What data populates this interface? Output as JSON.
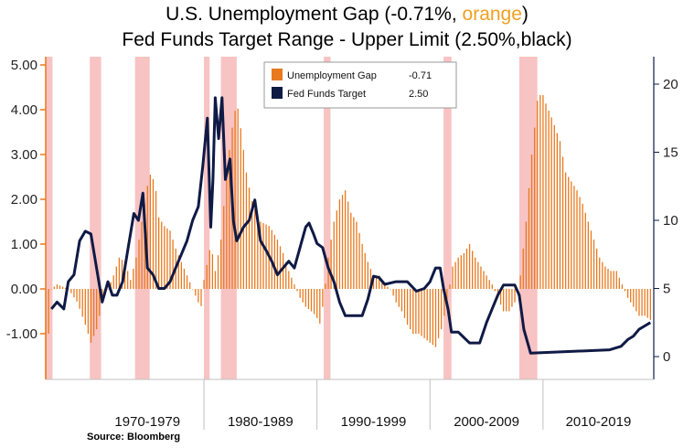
{
  "title": {
    "line1_prefix": "U.S. Unemployment Gap (-0.71%, ",
    "line1_highlight": "orange",
    "line1_suffix": ")",
    "line2": "Fed Funds Target Range - Upper Limit (2.50%,black)"
  },
  "source": "Source: Bloomberg",
  "colors": {
    "gap": "#e8791e",
    "fed": "#0f1a45",
    "recession": "#f7b8b8",
    "grid": "#c8c8c8",
    "divider": "#c0c0c0"
  },
  "chart_data": {
    "type": "bar+line",
    "title": "U.S. Unemployment Gap (-0.71%, orange) / Fed Funds Target Range - Upper Limit (2.50%, black)",
    "x_range": [
      1966,
      2019.8
    ],
    "left_axis": {
      "min": -2.0,
      "max": 5.0,
      "ticks": [
        -1.0,
        0.0,
        1.0,
        2.0,
        3.0,
        4.0,
        5.0
      ],
      "tick_labels": [
        "-1.00",
        "0.00",
        "1.00",
        "2.00",
        "3.00",
        "4.00",
        "5.00"
      ]
    },
    "right_axis": {
      "min": -2.0,
      "max": 21.0,
      "ticks": [
        0,
        5,
        10,
        15,
        20
      ],
      "tick_labels": [
        "0",
        "5",
        "10",
        "15",
        "20"
      ]
    },
    "decades": [
      {
        "label": "1970-1979",
        "start": 1970,
        "end": 1980
      },
      {
        "label": "1980-1989",
        "start": 1980,
        "end": 1990
      },
      {
        "label": "1990-1999",
        "start": 1990,
        "end": 2000
      },
      {
        "label": "2000-2009",
        "start": 2000,
        "end": 2010
      },
      {
        "label": "2010-2019",
        "start": 2010,
        "end": 2020
      }
    ],
    "recessions": [
      [
        1966.0,
        1966.6
      ],
      [
        1969.9,
        1970.9
      ],
      [
        1973.9,
        1975.2
      ],
      [
        1980.0,
        1980.5
      ],
      [
        1981.5,
        1982.9
      ],
      [
        1990.6,
        1991.2
      ],
      [
        2001.2,
        2001.9
      ],
      [
        2007.9,
        2009.5
      ]
    ],
    "legend": [
      {
        "label": "Unemployment Gap",
        "value": "-0.71",
        "series": "gap"
      },
      {
        "label": "Fed Funds Target",
        "value": "2.50",
        "series": "fed"
      }
    ],
    "series": [
      {
        "name": "Unemployment Gap",
        "axis": "left",
        "style": "bars",
        "points": [
          [
            1966.0,
            -2.0
          ],
          [
            1966.5,
            0.0
          ],
          [
            1967.0,
            0.1
          ],
          [
            1968.0,
            0.0
          ],
          [
            1968.8,
            -0.3
          ],
          [
            1969.5,
            -0.8
          ],
          [
            1970.0,
            -1.2
          ],
          [
            1970.5,
            -0.9
          ],
          [
            1971.0,
            -0.3
          ],
          [
            1971.5,
            0.0
          ],
          [
            1972.0,
            0.3
          ],
          [
            1972.5,
            0.7
          ],
          [
            1973.0,
            0.6
          ],
          [
            1973.5,
            0.2
          ],
          [
            1974.0,
            0.7
          ],
          [
            1974.5,
            1.5
          ],
          [
            1975.0,
            2.3
          ],
          [
            1975.3,
            2.6
          ],
          [
            1975.7,
            2.3
          ],
          [
            1976.0,
            1.6
          ],
          [
            1976.5,
            1.4
          ],
          [
            1977.0,
            1.3
          ],
          [
            1977.5,
            0.9
          ],
          [
            1978.0,
            0.6
          ],
          [
            1978.5,
            0.3
          ],
          [
            1979.0,
            0.0
          ],
          [
            1979.5,
            -0.3
          ],
          [
            1979.8,
            -0.4
          ],
          [
            1980.0,
            0.2
          ],
          [
            1980.6,
            1.0
          ],
          [
            1981.0,
            0.4
          ],
          [
            1981.5,
            1.1
          ],
          [
            1982.0,
            2.6
          ],
          [
            1982.5,
            3.6
          ],
          [
            1982.9,
            4.2
          ],
          [
            1983.3,
            3.5
          ],
          [
            1983.8,
            2.5
          ],
          [
            1984.3,
            1.9
          ],
          [
            1985.0,
            1.5
          ],
          [
            1985.8,
            1.4
          ],
          [
            1986.5,
            1.1
          ],
          [
            1987.0,
            0.8
          ],
          [
            1987.5,
            0.4
          ],
          [
            1988.0,
            0.1
          ],
          [
            1988.5,
            -0.2
          ],
          [
            1989.0,
            -0.4
          ],
          [
            1989.5,
            -0.5
          ],
          [
            1989.9,
            -0.6
          ],
          [
            1990.3,
            -0.8
          ],
          [
            1990.7,
            0.0
          ],
          [
            1991.0,
            0.7
          ],
          [
            1991.5,
            1.5
          ],
          [
            1992.0,
            2.0
          ],
          [
            1992.5,
            2.2
          ],
          [
            1993.0,
            1.7
          ],
          [
            1993.5,
            1.5
          ],
          [
            1994.0,
            1.0
          ],
          [
            1994.5,
            0.6
          ],
          [
            1995.0,
            0.3
          ],
          [
            1995.5,
            0.3
          ],
          [
            1996.0,
            0.1
          ],
          [
            1996.5,
            0.0
          ],
          [
            1997.0,
            -0.3
          ],
          [
            1997.5,
            -0.5
          ],
          [
            1998.0,
            -0.8
          ],
          [
            1998.5,
            -1.0
          ],
          [
            1999.0,
            -1.0
          ],
          [
            1999.5,
            -1.1
          ],
          [
            2000.0,
            -1.2
          ],
          [
            2000.5,
            -1.3
          ],
          [
            2001.0,
            -0.9
          ],
          [
            2001.5,
            -0.3
          ],
          [
            2002.0,
            0.5
          ],
          [
            2002.5,
            0.7
          ],
          [
            2003.0,
            0.8
          ],
          [
            2003.5,
            1.0
          ],
          [
            2004.0,
            0.7
          ],
          [
            2004.5,
            0.5
          ],
          [
            2005.0,
            0.3
          ],
          [
            2005.5,
            0.1
          ],
          [
            2006.0,
            -0.2
          ],
          [
            2006.5,
            -0.5
          ],
          [
            2007.0,
            -0.5
          ],
          [
            2007.5,
            -0.3
          ],
          [
            2008.0,
            0.3
          ],
          [
            2008.5,
            1.5
          ],
          [
            2009.0,
            3.0
          ],
          [
            2009.5,
            4.2
          ],
          [
            2009.9,
            4.4
          ],
          [
            2010.3,
            4.1
          ],
          [
            2010.8,
            3.8
          ],
          [
            2011.5,
            3.3
          ],
          [
            2012.0,
            2.6
          ],
          [
            2012.5,
            2.4
          ],
          [
            2013.0,
            2.2
          ],
          [
            2013.5,
            1.9
          ],
          [
            2014.0,
            1.5
          ],
          [
            2014.5,
            1.1
          ],
          [
            2015.0,
            0.7
          ],
          [
            2015.5,
            0.5
          ],
          [
            2016.0,
            0.4
          ],
          [
            2016.5,
            0.4
          ],
          [
            2017.0,
            0.1
          ],
          [
            2017.5,
            -0.2
          ],
          [
            2018.0,
            -0.4
          ],
          [
            2018.5,
            -0.6
          ],
          [
            2019.0,
            -0.6
          ],
          [
            2019.6,
            -0.71
          ]
        ]
      },
      {
        "name": "Fed Funds Target",
        "axis": "right",
        "style": "line",
        "points": [
          [
            1966.5,
            3.5
          ],
          [
            1967.0,
            4.0
          ],
          [
            1967.6,
            3.5
          ],
          [
            1968.0,
            5.5
          ],
          [
            1968.5,
            6.0
          ],
          [
            1969.0,
            8.5
          ],
          [
            1969.5,
            9.2
          ],
          [
            1970.0,
            9.0
          ],
          [
            1970.5,
            6.5
          ],
          [
            1971.0,
            4.0
          ],
          [
            1971.5,
            5.5
          ],
          [
            1971.9,
            4.5
          ],
          [
            1972.3,
            4.5
          ],
          [
            1972.8,
            5.5
          ],
          [
            1973.3,
            8.0
          ],
          [
            1973.8,
            10.5
          ],
          [
            1974.2,
            10.0
          ],
          [
            1974.6,
            12.0
          ],
          [
            1975.0,
            6.5
          ],
          [
            1975.5,
            6.0
          ],
          [
            1976.0,
            5.0
          ],
          [
            1976.5,
            5.0
          ],
          [
            1977.0,
            5.5
          ],
          [
            1977.5,
            6.5
          ],
          [
            1978.0,
            7.5
          ],
          [
            1978.5,
            8.5
          ],
          [
            1979.0,
            10.0
          ],
          [
            1979.5,
            11.0
          ],
          [
            1979.9,
            14.0
          ],
          [
            1980.3,
            17.5
          ],
          [
            1980.6,
            9.5
          ],
          [
            1980.8,
            13.0
          ],
          [
            1981.0,
            19.0
          ],
          [
            1981.3,
            16.0
          ],
          [
            1981.6,
            19.0
          ],
          [
            1981.9,
            13.0
          ],
          [
            1982.3,
            14.5
          ],
          [
            1982.6,
            10.0
          ],
          [
            1982.9,
            8.5
          ],
          [
            1983.5,
            9.5
          ],
          [
            1984.0,
            10.0
          ],
          [
            1984.5,
            11.5
          ],
          [
            1985.0,
            8.5
          ],
          [
            1985.5,
            7.8
          ],
          [
            1986.0,
            7.0
          ],
          [
            1986.5,
            6.0
          ],
          [
            1987.0,
            6.5
          ],
          [
            1987.5,
            7.0
          ],
          [
            1988.0,
            6.5
          ],
          [
            1988.5,
            8.0
          ],
          [
            1989.0,
            9.5
          ],
          [
            1989.3,
            9.8
          ],
          [
            1989.7,
            9.0
          ],
          [
            1990.0,
            8.3
          ],
          [
            1990.5,
            8.0
          ],
          [
            1991.0,
            6.5
          ],
          [
            1991.5,
            5.5
          ],
          [
            1992.0,
            4.0
          ],
          [
            1992.5,
            3.0
          ],
          [
            1993.0,
            3.0
          ],
          [
            1994.0,
            3.0
          ],
          [
            1994.5,
            4.2
          ],
          [
            1995.0,
            5.9
          ],
          [
            1995.5,
            5.8
          ],
          [
            1996.0,
            5.3
          ],
          [
            1997.0,
            5.5
          ],
          [
            1998.0,
            5.5
          ],
          [
            1998.8,
            4.8
          ],
          [
            1999.5,
            5.0
          ],
          [
            2000.0,
            5.5
          ],
          [
            2000.5,
            6.5
          ],
          [
            2000.9,
            6.5
          ],
          [
            2001.2,
            5.0
          ],
          [
            2001.6,
            3.5
          ],
          [
            2001.9,
            1.8
          ],
          [
            2002.5,
            1.8
          ],
          [
            2003.5,
            1.0
          ],
          [
            2004.4,
            1.0
          ],
          [
            2005.0,
            2.5
          ],
          [
            2005.5,
            3.5
          ],
          [
            2006.0,
            4.5
          ],
          [
            2006.5,
            5.25
          ],
          [
            2007.5,
            5.25
          ],
          [
            2007.9,
            4.5
          ],
          [
            2008.3,
            2.0
          ],
          [
            2008.9,
            0.25
          ],
          [
            2015.9,
            0.5
          ],
          [
            2016.9,
            0.75
          ],
          [
            2017.5,
            1.25
          ],
          [
            2018.0,
            1.5
          ],
          [
            2018.5,
            2.0
          ],
          [
            2019.0,
            2.25
          ],
          [
            2019.5,
            2.5
          ]
        ]
      }
    ]
  }
}
